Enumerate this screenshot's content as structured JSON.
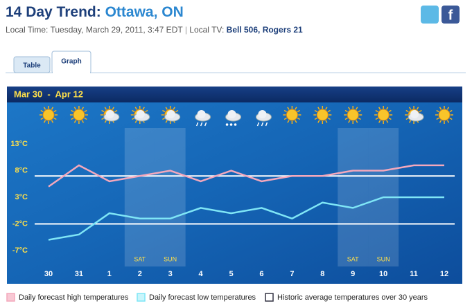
{
  "header": {
    "title": "14 Day Trend:",
    "location": "Ottawa, ON",
    "local_time": "Local Time: Tuesday, March 29, 2011, 3:47 EDT",
    "separator": "|",
    "tv_label": "Local TV:",
    "tv_value": "Bell 506, Rogers 21"
  },
  "tabs": [
    "Table",
    "Graph"
  ],
  "chart_data": {
    "type": "line",
    "title": "Mar 30  -  Apr 12",
    "categories": [
      "30",
      "31",
      "1",
      "2",
      "3",
      "4",
      "5",
      "6",
      "7",
      "8",
      "9",
      "10",
      "11",
      "12"
    ],
    "day_labels": [
      null,
      null,
      null,
      "SAT",
      "SUN",
      null,
      null,
      null,
      null,
      null,
      "SAT",
      "SUN",
      null,
      null
    ],
    "series": [
      {
        "name": "Daily forecast high temperatures",
        "color": "#f4a8bc",
        "values": [
          5,
          9,
          6,
          7,
          8,
          6,
          8,
          6,
          7,
          7,
          8,
          8,
          9,
          9
        ]
      },
      {
        "name": "Daily forecast low temperatures",
        "color": "#7fe6f6",
        "values": [
          -5,
          -4,
          0,
          -1,
          -1,
          1,
          0,
          1,
          -1,
          2,
          1,
          3,
          3,
          3
        ]
      }
    ],
    "reference_lines": {
      "name": "Historic average temperatures over 30 years",
      "color": "#ffffff",
      "values": [
        7,
        -2
      ]
    },
    "ylim": [
      -10,
      16
    ],
    "yticks": [
      {
        "value": 13,
        "label": "13°C"
      },
      {
        "value": 8,
        "label": "8°C"
      },
      {
        "value": 3,
        "label": "3°C"
      },
      {
        "value": -2,
        "label": "-2°C"
      },
      {
        "value": -7,
        "label": "-7°C"
      }
    ],
    "grid": false
  }
}
